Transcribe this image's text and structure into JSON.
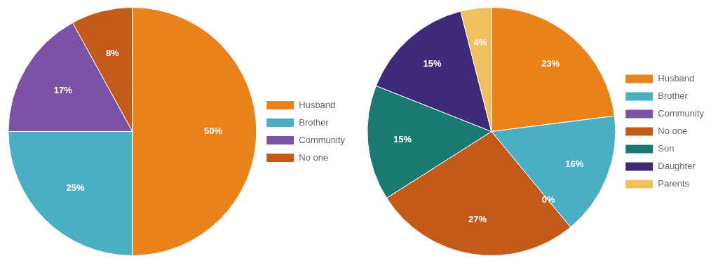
{
  "chart_data": [
    {
      "type": "pie",
      "categories": [
        "Husband",
        "Brother",
        "Community",
        "No one"
      ],
      "values": [
        50,
        25,
        17,
        8
      ],
      "value_labels": [
        "50%",
        "25%",
        "17%",
        "8%"
      ],
      "colors": [
        "#E8821A",
        "#4BAFC4",
        "#7B52A6",
        "#C45A1A"
      ],
      "data_labels": true,
      "legend": "right"
    },
    {
      "type": "pie",
      "categories": [
        "Husband",
        "Brother",
        "Community",
        "No one",
        "Son",
        "Daughter",
        "Parents"
      ],
      "values": [
        23,
        16,
        0,
        27,
        15,
        15,
        4
      ],
      "value_labels": [
        "23%",
        "16%",
        "0%",
        "27%",
        "15%",
        "15%",
        "4%"
      ],
      "colors": [
        "#E8821A",
        "#4BAFC4",
        "#7B52A6",
        "#C45A1A",
        "#1A7A72",
        "#3D2B7A",
        "#F0C060"
      ],
      "data_labels": true,
      "legend": "right"
    }
  ]
}
